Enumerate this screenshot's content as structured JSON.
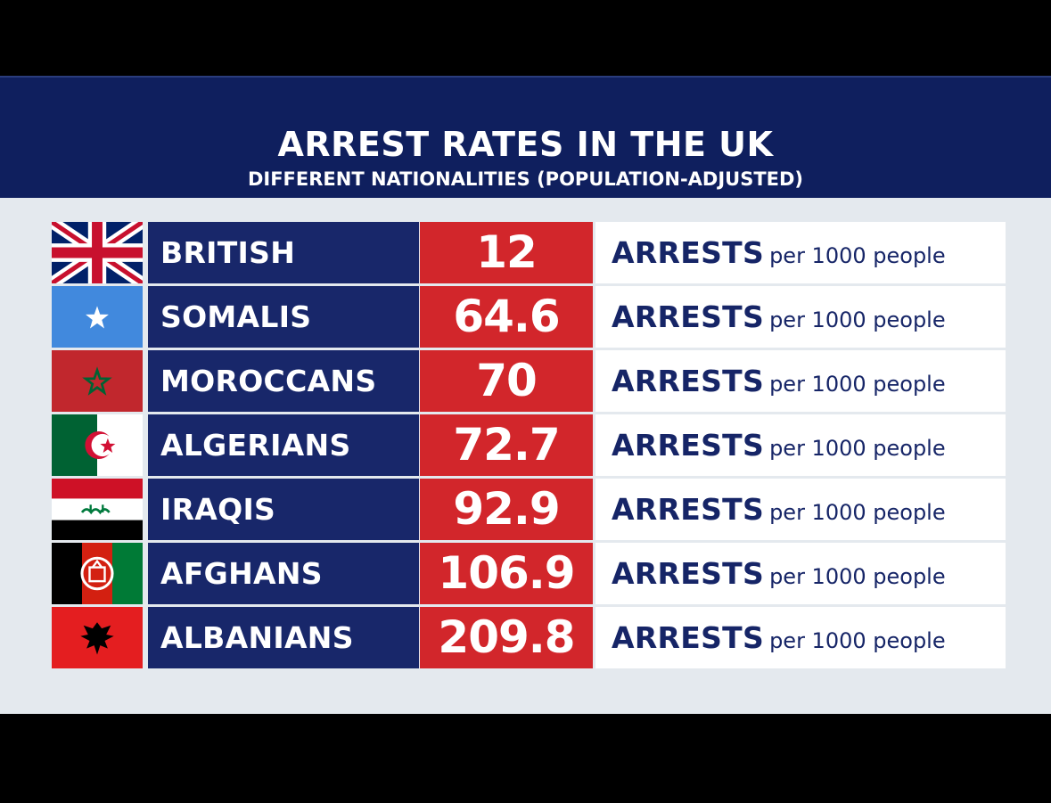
{
  "header": {
    "title": "ARREST RATES IN THE UK",
    "subtitle": "DIFFERENT NATIONALITIES (POPULATION-ADJUSTED)"
  },
  "chart_data": {
    "type": "table",
    "title": "ARREST RATES IN THE UK",
    "subtitle": "DIFFERENT NATIONALITIES (POPULATION-ADJUSTED)",
    "columns": [
      "nationality",
      "rate",
      "unit"
    ],
    "rows": [
      {
        "flag": "uk-flag-icon",
        "nationality": "BRITISH",
        "value": "12",
        "unit_big": "ARRESTS",
        "unit_small": "per 1000 people"
      },
      {
        "flag": "somalia-flag-icon",
        "nationality": "SOMALIS",
        "value": "64.6",
        "unit_big": "ARRESTS",
        "unit_small": "per 1000 people"
      },
      {
        "flag": "morocco-flag-icon",
        "nationality": "MOROCCANS",
        "value": "70",
        "unit_big": "ARRESTS",
        "unit_small": "per 1000 people"
      },
      {
        "flag": "algeria-flag-icon",
        "nationality": "ALGERIANS",
        "value": "72.7",
        "unit_big": "ARRESTS",
        "unit_small": "per 1000 people"
      },
      {
        "flag": "iraq-flag-icon",
        "nationality": "IRAQIS",
        "value": "92.9",
        "unit_big": "ARRESTS",
        "unit_small": "per 1000 people"
      },
      {
        "flag": "afghanistan-flag-icon",
        "nationality": "AFGHANS",
        "value": "106.9",
        "unit_big": "ARRESTS",
        "unit_small": "per 1000 people"
      },
      {
        "flag": "albania-flag-icon",
        "nationality": "ALBANIANS",
        "value": "209.8",
        "unit_big": "ARRESTS",
        "unit_small": "per 1000 people"
      }
    ]
  },
  "colors": {
    "header_bg": "#0f1f5e",
    "name_bg": "#18276a",
    "value_bg": "#d2262b",
    "unit_text": "#162567",
    "panel_bg": "#e4e9ee"
  }
}
